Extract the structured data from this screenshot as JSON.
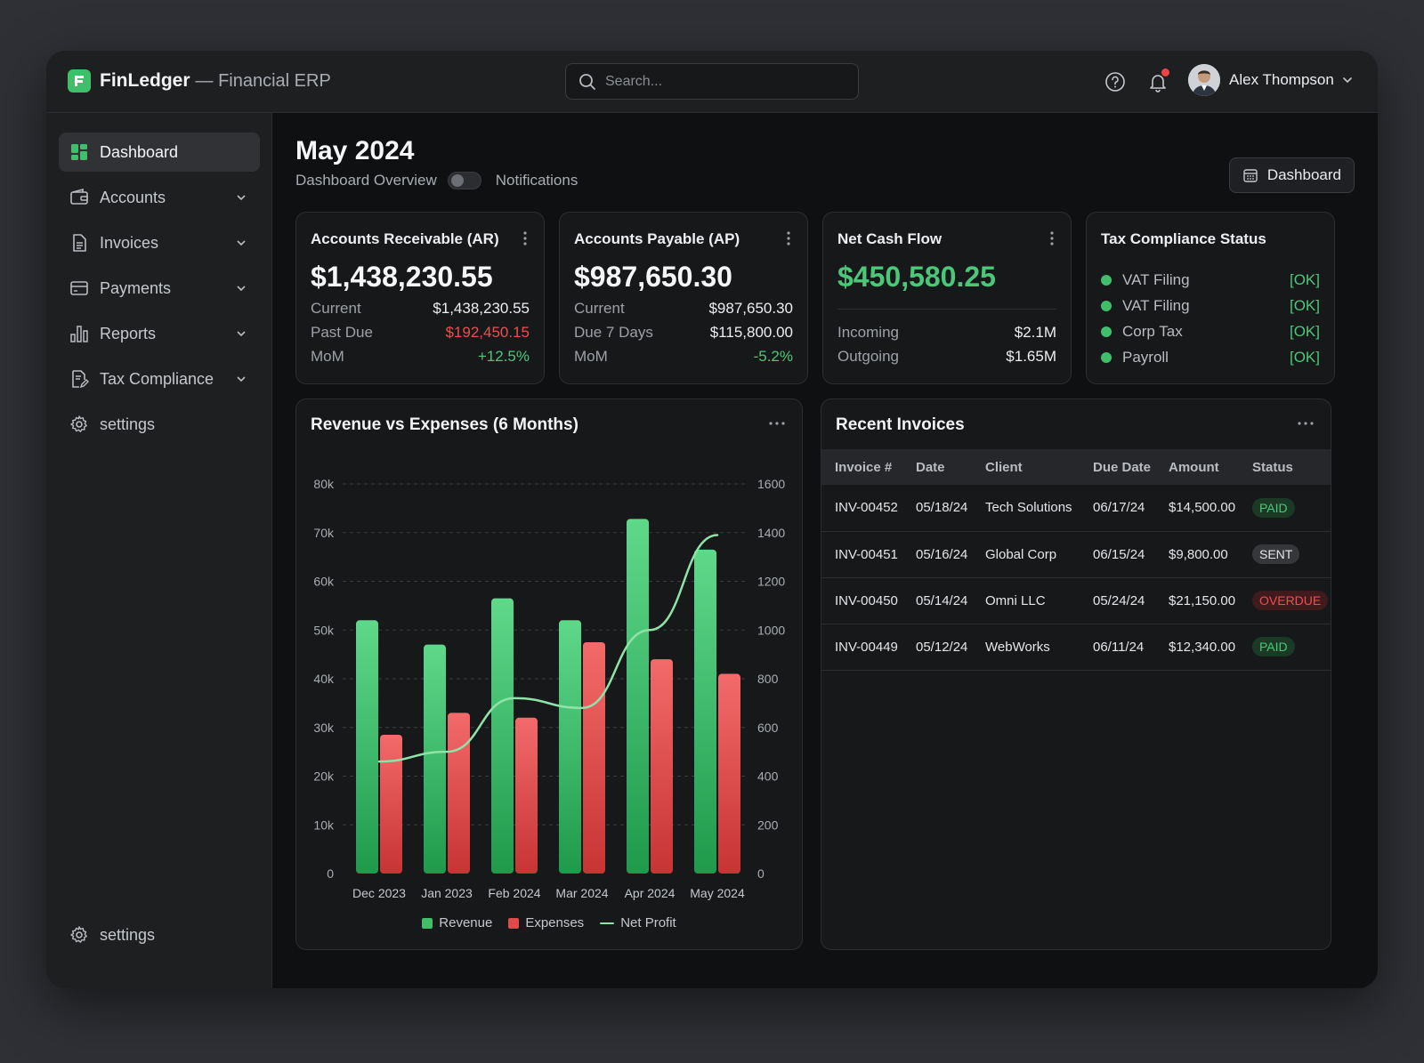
{
  "app": {
    "name": "FinLedger",
    "subtitle": "— Financial ERP"
  },
  "search": {
    "placeholder": "Search..."
  },
  "user": {
    "name": "Alex Thompson"
  },
  "sidebar": {
    "items": [
      {
        "label": "Dashboard",
        "icon": "dashboard-icon",
        "active": true
      },
      {
        "label": "Accounts",
        "icon": "wallet-icon"
      },
      {
        "label": "Invoices",
        "icon": "document-icon"
      },
      {
        "label": "Payments",
        "icon": "card-icon"
      },
      {
        "label": "Reports",
        "icon": "bar-chart-icon"
      },
      {
        "label": "Tax Compliance",
        "icon": "tax-doc-icon"
      },
      {
        "label": "settings",
        "icon": "gear-icon"
      }
    ],
    "bottom": {
      "label": "settings",
      "icon": "gear-icon"
    }
  },
  "page": {
    "title": "May 2024",
    "overview_label": "Dashboard Overview",
    "notifications_label": "Notifications",
    "dashboard_button": "Dashboard"
  },
  "kpis": {
    "ar": {
      "title": "Accounts Receivable (AR)",
      "value": "$1,438,230.55",
      "rows": [
        {
          "label": "Current",
          "value": "$1,438,230.55"
        },
        {
          "label": "Past Due",
          "value": "$192,450.15"
        },
        {
          "label": "MoM",
          "value": "+12.5%"
        }
      ]
    },
    "ap": {
      "title": "Accounts Payable (AP)",
      "value": "$987,650.30",
      "rows": [
        {
          "label": "Current",
          "value": "$987,650.30"
        },
        {
          "label": "Due 7 Days",
          "value": "$115,800.00"
        },
        {
          "label": "MoM",
          "value": "-5.2%"
        }
      ]
    },
    "cash": {
      "title": "Net Cash Flow",
      "value": "$450,580.25",
      "rows": [
        {
          "label": "Incoming",
          "value": "$2.1M"
        },
        {
          "label": "Outgoing",
          "value": "$1.65M"
        }
      ]
    },
    "tax": {
      "title": "Tax Compliance Status",
      "rows": [
        {
          "label": "VAT Filing",
          "status": "[OK]"
        },
        {
          "label": "VAT Filing",
          "status": "[OK]"
        },
        {
          "label": "Corp Tax",
          "status": "[OK]"
        },
        {
          "label": "Payroll",
          "status": "[OK]"
        }
      ]
    }
  },
  "chart_card": {
    "title": "Revenue vs Expenses (6 Months)"
  },
  "chart_data": {
    "type": "bar",
    "title": "Revenue vs Expenses (6 Months)",
    "categories": [
      "Dec 2023",
      "Jan 2023",
      "Feb 2024",
      "Mar 2024",
      "Apr 2024",
      "May 2024"
    ],
    "series": [
      {
        "name": "Revenue",
        "type": "bar",
        "axis": "left",
        "color": "#3fbf6a",
        "values": [
          52000,
          47000,
          56500,
          52000,
          72800,
          66500
        ]
      },
      {
        "name": "Expenses",
        "type": "bar",
        "axis": "left",
        "color": "#e24a4a",
        "values": [
          28500,
          33000,
          32000,
          47500,
          44000,
          41000
        ]
      },
      {
        "name": "Net Profit",
        "type": "line",
        "axis": "right",
        "color": "#8fe3a8",
        "values": [
          460,
          500,
          720,
          680,
          1000,
          1390
        ]
      }
    ],
    "y_left": {
      "min": 0,
      "max": 80000,
      "ticks": [
        "0",
        "10k",
        "20k",
        "30k",
        "40k",
        "50k",
        "60k",
        "70k",
        "80k"
      ]
    },
    "y_right": {
      "min": 0,
      "max": 1600,
      "ticks": [
        "0",
        "200",
        "400",
        "600",
        "800",
        "1000",
        "1200",
        "1400",
        "1600"
      ]
    },
    "grid": true,
    "legend": "bottom"
  },
  "invoices": {
    "title": "Recent Invoices",
    "columns": [
      "Invoice #",
      "Date",
      "Client",
      "Due Date",
      "Amount",
      "Status"
    ],
    "rows": [
      {
        "id": "INV-00452",
        "date": "05/18/24",
        "client": "Tech Solutions",
        "due": "06/17/24",
        "amount": "$14,500.00",
        "status": "PAID"
      },
      {
        "id": "INV-00451",
        "date": "05/16/24",
        "client": "Global Corp",
        "due": "06/15/24",
        "amount": "$9,800.00",
        "status": "SENT"
      },
      {
        "id": "INV-00450",
        "date": "05/14/24",
        "client": "Omni LLC",
        "due": "05/24/24",
        "amount": "$21,150.00",
        "status": "OVERDUE"
      },
      {
        "id": "INV-00449",
        "date": "05/12/24",
        "client": "WebWorks",
        "due": "06/11/24",
        "amount": "$12,340.00",
        "status": "PAID"
      }
    ]
  },
  "colors": {
    "accent": "#3fbf6a",
    "danger": "#e24a4a",
    "background": "#0f1011",
    "panel": "#1e1f21"
  }
}
